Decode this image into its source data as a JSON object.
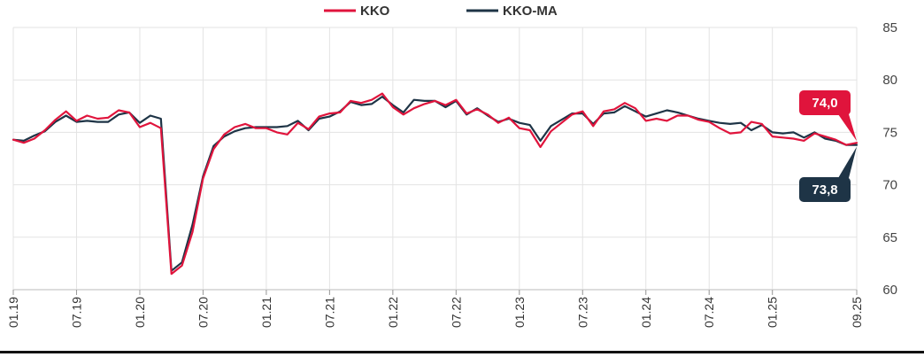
{
  "chart_data": {
    "type": "line",
    "x": [
      "01.19",
      "02.19",
      "03.19",
      "04.19",
      "05.19",
      "06.19",
      "07.19",
      "08.19",
      "09.19",
      "10.19",
      "11.19",
      "12.19",
      "01.20",
      "02.20",
      "03.20",
      "04.20",
      "05.20",
      "06.20",
      "07.20",
      "08.20",
      "09.20",
      "10.20",
      "11.20",
      "12.20",
      "01.21",
      "02.21",
      "03.21",
      "04.21",
      "05.21",
      "06.21",
      "07.21",
      "08.21",
      "09.21",
      "10.21",
      "11.21",
      "12.21",
      "01.22",
      "02.22",
      "03.22",
      "04.22",
      "05.22",
      "06.22",
      "07.22",
      "08.22",
      "09.22",
      "10.22",
      "11.22",
      "12.22",
      "01.23",
      "02.23",
      "03.23",
      "04.23",
      "05.23",
      "06.23",
      "07.23",
      "08.23",
      "09.23",
      "10.23",
      "11.23",
      "12.23",
      "01.24",
      "02.24",
      "03.24",
      "04.24",
      "05.24",
      "06.24",
      "07.24",
      "08.24",
      "09.24",
      "10.24",
      "11.24",
      "12.24",
      "01.25",
      "02.25",
      "03.25",
      "04.25",
      "05.25",
      "06.25",
      "07.25",
      "08.25",
      "09.25"
    ],
    "x_tick_labels": [
      "01.19",
      "07.19",
      "01.20",
      "07.20",
      "01.21",
      "07.21",
      "01.22",
      "07.22",
      "01.23",
      "07.23",
      "01.24",
      "07.24",
      "01.25",
      "09.25"
    ],
    "series": [
      {
        "name": "KKO",
        "color": "#e0143c",
        "values": [
          74.3,
          74.0,
          74.4,
          75.2,
          76.2,
          77.0,
          76.1,
          76.6,
          76.3,
          76.4,
          77.1,
          76.9,
          75.5,
          75.9,
          75.4,
          61.5,
          62.3,
          65.5,
          70.6,
          73.4,
          74.8,
          75.5,
          75.8,
          75.4,
          75.4,
          75.0,
          74.8,
          75.9,
          75.3,
          76.5,
          76.8,
          76.9,
          78.0,
          77.8,
          78.1,
          78.7,
          77.4,
          76.7,
          77.3,
          77.7,
          78.0,
          77.6,
          78.1,
          76.8,
          77.2,
          76.7,
          75.9,
          76.4,
          75.4,
          75.2,
          73.6,
          75.1,
          75.9,
          76.7,
          77.0,
          75.6,
          77.0,
          77.2,
          77.8,
          77.3,
          76.1,
          76.3,
          76.1,
          76.6,
          76.6,
          76.2,
          76.0,
          75.4,
          74.9,
          75.0,
          76.0,
          75.8,
          74.6,
          74.5,
          74.4,
          74.2,
          74.9,
          74.6,
          74.3,
          73.8,
          74.0
        ]
      },
      {
        "name": "KKO-MA",
        "color": "#1e3446",
        "values": [
          74.3,
          74.2,
          74.7,
          75.1,
          76.0,
          76.6,
          76.0,
          76.1,
          76.0,
          76.0,
          76.7,
          76.9,
          75.9,
          76.6,
          76.3,
          61.8,
          62.6,
          66.2,
          70.8,
          73.7,
          74.6,
          75.1,
          75.4,
          75.5,
          75.5,
          75.5,
          75.6,
          76.1,
          75.2,
          76.3,
          76.5,
          77.0,
          77.9,
          77.6,
          77.7,
          78.4,
          77.6,
          76.9,
          78.1,
          78.0,
          78.0,
          77.4,
          78.0,
          76.7,
          77.3,
          76.6,
          76.0,
          76.3,
          75.9,
          75.7,
          74.2,
          75.6,
          76.2,
          76.8,
          76.8,
          75.8,
          76.8,
          76.9,
          77.5,
          77.0,
          76.5,
          76.8,
          77.1,
          76.9,
          76.6,
          76.3,
          76.1,
          75.9,
          75.8,
          75.9,
          75.2,
          75.7,
          75.0,
          74.9,
          75.0,
          74.5,
          75.0,
          74.4,
          74.2,
          73.8,
          73.8
        ]
      }
    ],
    "end_labels": [
      "74,0",
      "73,8"
    ],
    "y_ticks": [
      "60",
      "65",
      "70",
      "75",
      "80",
      "85"
    ],
    "ylim": [
      60,
      85
    ],
    "grid": true,
    "legend": "top-center",
    "y_axis_side": "right"
  }
}
